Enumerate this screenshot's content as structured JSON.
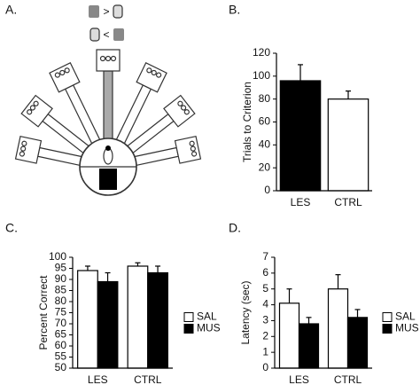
{
  "diagram": {
    "label": "A.",
    "symbols": [
      ">",
      "<"
    ]
  },
  "chart_data": [
    {
      "type": "bar",
      "label": "B.",
      "y_label": "Trials to Criterion",
      "categories": [
        "LES",
        "CTRL"
      ],
      "values": [
        96,
        80
      ],
      "errors": [
        14,
        7
      ],
      "colors": [
        "#000000",
        "#ffffff"
      ],
      "ylim": [
        0,
        120
      ],
      "yticks": [
        0,
        20,
        40,
        60,
        80,
        100,
        120
      ]
    },
    {
      "type": "bar",
      "label": "C.",
      "y_label": "Percent Correct",
      "categories": [
        "LES",
        "CTRL"
      ],
      "series": [
        {
          "name": "SAL",
          "color": "#ffffff",
          "values": [
            94,
            96
          ],
          "errors": [
            2,
            1.5
          ]
        },
        {
          "name": "MUS",
          "color": "#000000",
          "values": [
            89,
            93
          ],
          "errors": [
            4,
            3
          ]
        }
      ],
      "ylim": [
        50,
        100
      ],
      "yticks": [
        50,
        55,
        60,
        65,
        70,
        75,
        80,
        85,
        90,
        95,
        100
      ]
    },
    {
      "type": "bar",
      "label": "D.",
      "y_label": "Latency (sec)",
      "categories": [
        "LES",
        "CTRL"
      ],
      "series": [
        {
          "name": "SAL",
          "color": "#ffffff",
          "values": [
            4.1,
            5.0
          ],
          "errors": [
            0.9,
            0.9
          ]
        },
        {
          "name": "MUS",
          "color": "#000000",
          "values": [
            2.8,
            3.2
          ],
          "errors": [
            0.4,
            0.5
          ]
        }
      ],
      "ylim": [
        0,
        7
      ],
      "yticks": [
        0,
        1,
        2,
        3,
        4,
        5,
        6,
        7
      ]
    }
  ]
}
